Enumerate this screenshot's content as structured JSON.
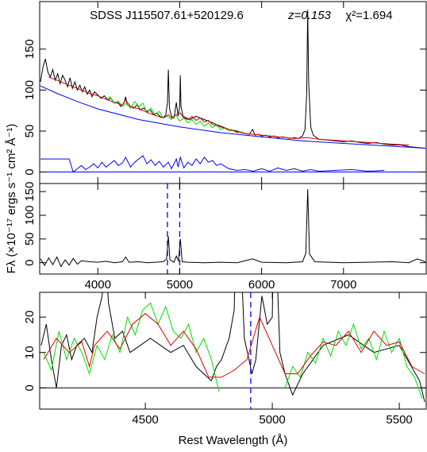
{
  "chart_data": [
    {
      "type": "line",
      "labels": [
        "SDSS J115507.61+520129.6",
        "z=0.153",
        "χ²=1.694"
      ],
      "xlim": [
        3290,
        8010
      ],
      "ylim": [
        -14,
        208
      ],
      "xticks": [
        4000,
        5000,
        6000,
        7000
      ],
      "yticks": [
        0,
        50,
        100,
        150
      ],
      "hlines": [
        {
          "value": 0,
          "color": "#0000ff"
        }
      ],
      "series": [
        {
          "color": "#000000",
          "x": [
            3300,
            3330,
            3360,
            3390,
            3420,
            3450,
            3480,
            3510,
            3540,
            3570,
            3600,
            3630,
            3660,
            3690,
            3720,
            3750,
            3780,
            3810,
            3840,
            3870,
            3900,
            3930,
            3960,
            4000,
            4040,
            4080,
            4120,
            4160,
            4200,
            4240,
            4280,
            4320,
            4340,
            4360,
            4400,
            4440,
            4480,
            4520,
            4560,
            4600,
            4640,
            4680,
            4720,
            4760,
            4800,
            4830,
            4850,
            4861,
            4875,
            4900,
            4930,
            4959,
            4980,
            5000,
            5007,
            5015,
            5040,
            5080,
            5120,
            5160,
            5200,
            5250,
            5300,
            5350,
            5400,
            5450,
            5500,
            5550,
            5600,
            5650,
            5700,
            5750,
            5800,
            5850,
            5890,
            5920,
            5960,
            6000,
            6050,
            6100,
            6150,
            6200,
            6250,
            6300,
            6350,
            6400,
            6450,
            6500,
            6530,
            6550,
            6563,
            6575,
            6600,
            6630,
            6700,
            6800,
            6900,
            7000,
            7100,
            7200,
            7300,
            7400,
            7500,
            7600,
            7700,
            7800,
            7900,
            8000
          ],
          "values": [
            110,
            128,
            138,
            122,
            116,
            125,
            112,
            120,
            108,
            118,
            112,
            104,
            115,
            102,
            110,
            100,
            106,
            98,
            104,
            95,
            100,
            92,
            98,
            94,
            90,
            93,
            88,
            90,
            84,
            86,
            80,
            84,
            92,
            82,
            80,
            78,
            82,
            76,
            78,
            74,
            76,
            70,
            72,
            68,
            66,
            70,
            85,
            125,
            78,
            68,
            66,
            85,
            68,
            80,
            118,
            80,
            68,
            66,
            64,
            66,
            68,
            66,
            64,
            62,
            60,
            58,
            56,
            54,
            52,
            51,
            50,
            48,
            47,
            46,
            52,
            45,
            46,
            44,
            45,
            43,
            44,
            42,
            43,
            42,
            41,
            42,
            41,
            44,
            52,
            95,
            198,
            110,
            55,
            45,
            40,
            39,
            38,
            37,
            38,
            36,
            35,
            36,
            34,
            33,
            33,
            31,
            30,
            29
          ]
        },
        {
          "color": "#00e000",
          "x": [
            4100,
            4150,
            4200,
            4250,
            4300,
            4350,
            4400,
            4450,
            4500,
            4550,
            4600,
            4650,
            4700,
            4750,
            4800,
            4850,
            4900,
            4950,
            5000,
            5050,
            5100,
            5150,
            5200,
            5250,
            5300,
            5350,
            5400,
            5450,
            5500,
            5550,
            5600,
            5650,
            5700,
            5750,
            5800
          ],
          "values": [
            88,
            92,
            84,
            86,
            80,
            84,
            78,
            86,
            80,
            84,
            72,
            78,
            70,
            74,
            66,
            68,
            64,
            70,
            62,
            66,
            60,
            64,
            58,
            62,
            56,
            60,
            54,
            58,
            52,
            54,
            50,
            51,
            48,
            49,
            47
          ]
        },
        {
          "color": "#e00000",
          "x": [
            3400,
            3500,
            3600,
            3700,
            3800,
            3900,
            4000,
            4100,
            4200,
            4300,
            4340,
            4400,
            4500,
            4600,
            4700,
            4800,
            4861,
            4900,
            4959,
            5007,
            5050,
            5100,
            5150,
            5200,
            5250,
            5300,
            5350,
            5400,
            5500,
            5600,
            5700,
            5800,
            5900,
            6000,
            6200,
            6400,
            6563,
            6700,
            7000,
            7300,
            7600,
            7800
          ],
          "values": [
            116,
            112,
            108,
            104,
            100,
            96,
            93,
            89,
            85,
            82,
            88,
            80,
            77,
            73,
            69,
            66,
            70,
            66,
            70,
            72,
            66,
            64,
            68,
            63,
            66,
            61,
            63,
            58,
            55,
            52,
            49,
            47,
            46,
            45,
            43,
            41,
            42,
            40,
            38,
            36,
            34,
            33
          ]
        },
        {
          "color": "#0000ff",
          "x": [
            3300,
            3500,
            3750,
            4000,
            4500,
            5000,
            5500,
            6000,
            6500,
            7000,
            7500,
            8000
          ],
          "values": [
            105,
            96,
            86,
            77,
            64,
            55,
            48,
            43,
            38,
            35,
            32,
            29
          ]
        },
        {
          "color": "#0000ff",
          "x": [
            3300,
            3650,
            3700,
            3750,
            3800,
            3850,
            3900,
            3950,
            4000,
            4050,
            4100,
            4150,
            4200,
            4250,
            4300,
            4340,
            4400,
            4450,
            4500,
            4550,
            4600,
            4650,
            4700,
            4750,
            4800,
            4861,
            4900,
            4959,
            4980,
            5007,
            5050,
            5100,
            5150,
            5200,
            5250,
            5300,
            5350,
            5400,
            5450,
            5500,
            5600,
            5700,
            5800,
            5900,
            6000,
            6100,
            6200,
            6300,
            6400,
            6500,
            6600,
            6700,
            6900,
            7100,
            7300,
            7500
          ],
          "values": [
            16,
            16,
            0,
            4,
            8,
            3,
            6,
            10,
            5,
            12,
            6,
            10,
            14,
            8,
            11,
            18,
            6,
            12,
            16,
            20,
            10,
            15,
            8,
            13,
            6,
            12,
            4,
            16,
            6,
            18,
            5,
            12,
            8,
            16,
            10,
            18,
            12,
            14,
            8,
            10,
            4,
            2,
            3,
            1,
            4,
            1,
            5,
            2,
            4,
            1,
            3,
            1,
            2,
            3,
            1,
            2
          ]
        }
      ]
    },
    {
      "type": "line",
      "ylabel": "Fλ (×10⁻¹⁷ ergs s⁻¹ cm² Å⁻¹)",
      "xlim": [
        3290,
        8010
      ],
      "ylim": [
        -24,
        167
      ],
      "xticks": [
        4000,
        5000,
        6000,
        7000
      ],
      "yticks": [
        0,
        50,
        100,
        150
      ],
      "vlines": [
        {
          "value": 4850,
          "color": "#0000ff",
          "dashed": true
        },
        {
          "value": 5000,
          "color": "#0000ff",
          "dashed": true
        }
      ],
      "series": [
        {
          "color": "#000000",
          "x": [
            3300,
            3350,
            3400,
            3450,
            3500,
            3550,
            3600,
            3650,
            3700,
            3750,
            3800,
            3900,
            4000,
            4100,
            4200,
            4300,
            4340,
            4380,
            4500,
            4600,
            4700,
            4800,
            4840,
            4861,
            4880,
            4930,
            4959,
            4985,
            5007,
            5030,
            5100,
            5300,
            5500,
            5700,
            5890,
            6000,
            6300,
            6500,
            6540,
            6563,
            6585,
            6650,
            7000,
            7300,
            7600,
            7800,
            7900,
            8000
          ],
          "values": [
            8,
            -6,
            10,
            -4,
            12,
            -8,
            6,
            -5,
            9,
            -3,
            4,
            2,
            1,
            3,
            0,
            2,
            12,
            1,
            2,
            0,
            1,
            2,
            8,
            56,
            6,
            1,
            14,
            4,
            50,
            2,
            1,
            0,
            1,
            0,
            8,
            1,
            0,
            2,
            20,
            155,
            18,
            2,
            0,
            1,
            2,
            0,
            8,
            2
          ]
        }
      ]
    },
    {
      "type": "line",
      "xlabel": "Rest Wavelength (Å)",
      "xlim": [
        4084,
        5606
      ],
      "ylim": [
        -6,
        27
      ],
      "xticks": [
        4500,
        5000,
        5500
      ],
      "yticks": [
        0,
        10,
        20
      ],
      "hlines": [
        {
          "value": 0,
          "color": "#000000"
        }
      ],
      "vlines": [
        {
          "value": 4915,
          "color": "#0000ff",
          "dashed": true
        }
      ],
      "series": [
        {
          "color": "#000000",
          "x": [
            4090,
            4110,
            4130,
            4150,
            4170,
            4190,
            4210,
            4230,
            4260,
            4290,
            4310,
            4330,
            4340,
            4355,
            4380,
            4410,
            4440,
            4480,
            4520,
            4560,
            4600,
            4650,
            4700,
            4730,
            4760,
            4780,
            4800,
            4830,
            4850,
            4861,
            4875,
            4890,
            4920,
            4935,
            4959,
            4980,
            5000,
            5007,
            5015,
            5030,
            5050,
            5070,
            5080,
            5120,
            5200,
            5300,
            5400,
            5500,
            5580,
            5600
          ],
          "values": [
            12,
            18,
            8,
            0,
            12,
            15,
            8,
            12,
            14,
            10,
            20,
            26,
            40,
            24,
            14,
            16,
            10,
            12,
            14,
            12,
            10,
            12,
            6,
            4,
            2,
            6,
            8,
            14,
            22,
            60,
            40,
            14,
            4,
            8,
            26,
            18,
            20,
            60,
            40,
            10,
            4,
            0,
            -2,
            4,
            12,
            15,
            10,
            12,
            2,
            -4
          ]
        },
        {
          "color": "#00e000",
          "x": [
            4100,
            4130,
            4160,
            4190,
            4220,
            4250,
            4280,
            4310,
            4340,
            4370,
            4400,
            4430,
            4460,
            4490,
            4520,
            4550,
            4580,
            4610,
            4640,
            4670,
            4700,
            4730,
            4760,
            4790,
            4900,
            5050,
            5080,
            5110,
            5140,
            5170,
            5200,
            5230,
            5260,
            5290,
            5320,
            5350,
            5380,
            5410,
            5440,
            5470,
            5500,
            5530,
            5560,
            5590
          ],
          "values": [
            10,
            5,
            16,
            8,
            14,
            10,
            4,
            12,
            8,
            15,
            10,
            20,
            15,
            22,
            24,
            18,
            23,
            16,
            14,
            18,
            10,
            14,
            8,
            -1,
            null,
            0,
            6,
            3,
            10,
            7,
            14,
            9,
            16,
            12,
            18,
            11,
            14,
            8,
            16,
            10,
            14,
            6,
            3,
            -3
          ]
        },
        {
          "color": "#e00000",
          "x": [
            4100,
            4150,
            4200,
            4250,
            4280,
            4300,
            4350,
            4400,
            4450,
            4500,
            4550,
            4600,
            4650,
            4700,
            4750,
            4800,
            4850,
            4900,
            4950,
            5000,
            5050,
            5100,
            5150,
            5200,
            5250,
            5300,
            5350,
            5400,
            5450,
            5500,
            5550,
            5600
          ],
          "values": [
            8,
            14,
            10,
            13,
            6,
            12,
            16,
            11,
            18,
            21,
            18,
            12,
            16,
            11,
            3,
            3,
            5,
            8,
            20,
            12,
            4,
            4,
            9,
            13,
            12,
            16,
            10,
            16,
            12,
            13,
            6,
            4
          ]
        }
      ]
    }
  ]
}
